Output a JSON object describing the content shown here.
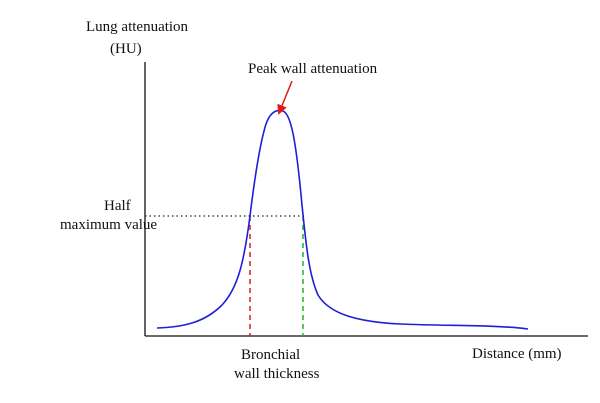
{
  "diagram": {
    "y_axis_label": [
      "Lung attenuation",
      "(HU)"
    ],
    "x_axis_label": "Distance (mm)",
    "peak_label": "Peak wall attenuation",
    "half_max_label": [
      "Half",
      "maximum value"
    ],
    "width_label": [
      "Bronchial",
      "wall thickness"
    ],
    "colors": {
      "curve": "#1f1fd6",
      "peak_arrow": "#e01818",
      "left_boundary": "#d42020",
      "right_boundary": "#1fb81f",
      "half_max_line": "#222222",
      "axes": "#111111"
    }
  }
}
